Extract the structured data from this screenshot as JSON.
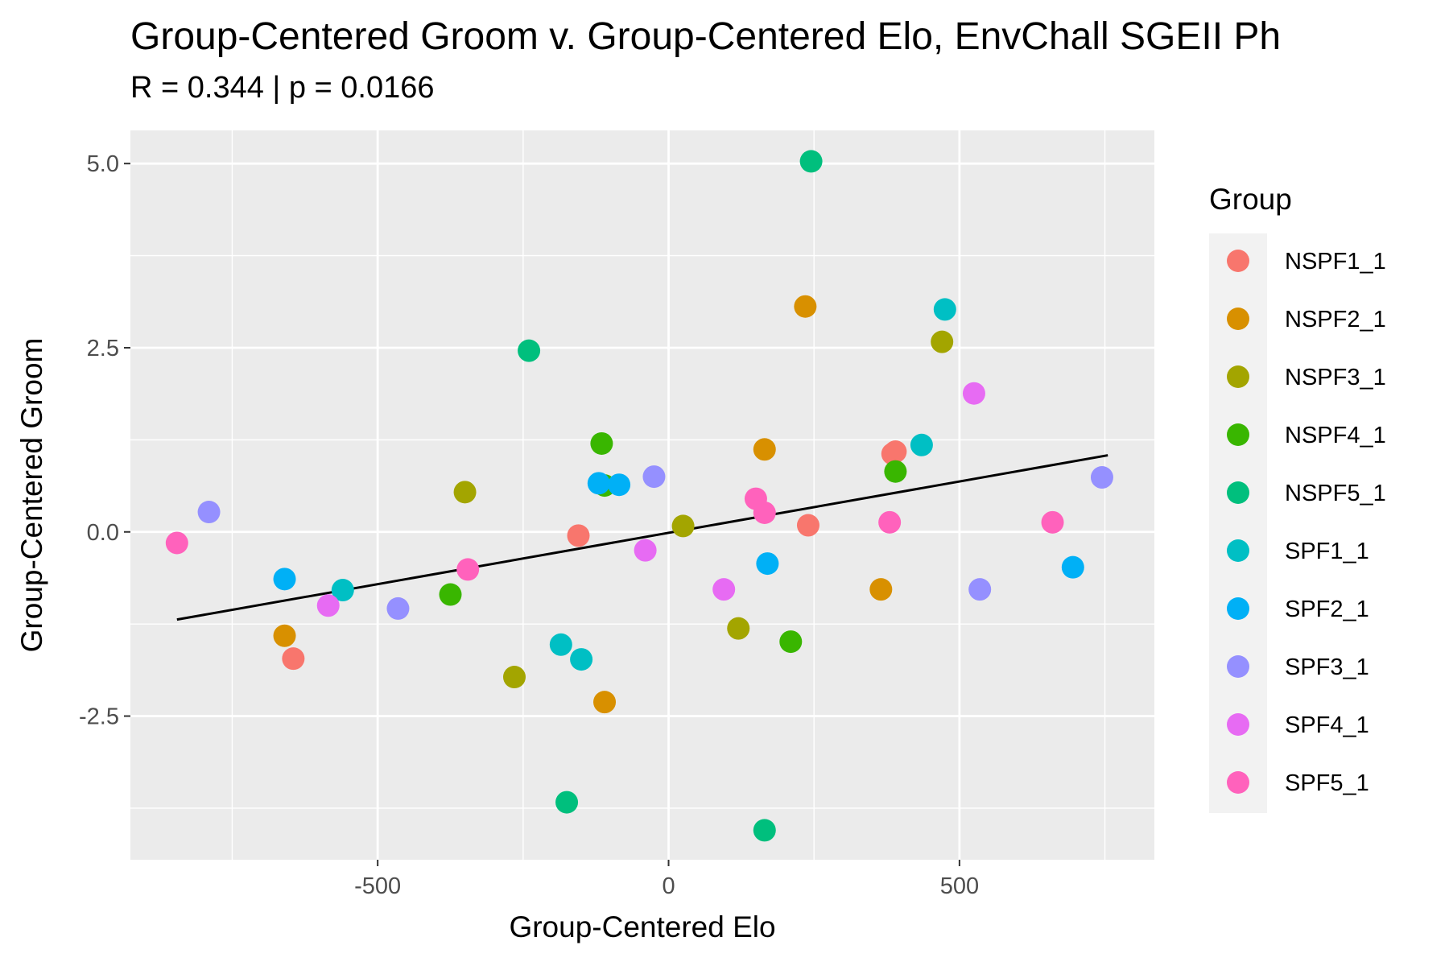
{
  "chart_data": {
    "type": "scatter",
    "title": "Group-Centered Groom v. Group-Centered Elo, EnvChall SGEII Ph",
    "subtitle": "R = 0.344 | p = 0.0166",
    "xlabel": "Group-Centered Elo",
    "ylabel": "Group-Centered Groom",
    "xlim": [
      -925,
      835
    ],
    "ylim": [
      -4.45,
      5.45
    ],
    "x_ticks": [
      -500,
      0,
      500
    ],
    "x_tick_labels": [
      "-500",
      "0",
      "500"
    ],
    "y_ticks": [
      -2.5,
      0.0,
      2.5,
      5.0
    ],
    "y_tick_labels": [
      "-2.5",
      "0.0",
      "2.5",
      "5.0"
    ],
    "grid": true,
    "legend": {
      "title": "Group",
      "placement": "right"
    },
    "trend_line": {
      "x": [
        -845,
        755
      ],
      "y": [
        -1.19,
        1.04
      ]
    },
    "series": [
      {
        "name": "NSPF1_1",
        "color": "#F8766D",
        "x": [
          -645,
          -155,
          240,
          385,
          390
        ],
        "y": [
          -1.72,
          -0.05,
          0.09,
          1.06,
          1.09
        ]
      },
      {
        "name": "NSPF2_1",
        "color": "#D89000",
        "x": [
          -660,
          -110,
          165,
          235,
          365
        ],
        "y": [
          -1.41,
          -2.31,
          1.12,
          3.06,
          -0.78
        ]
      },
      {
        "name": "NSPF3_1",
        "color": "#A3A500",
        "x": [
          -350,
          -265,
          25,
          120,
          470
        ],
        "y": [
          0.54,
          -1.97,
          0.08,
          -1.31,
          2.58
        ]
      },
      {
        "name": "NSPF4_1",
        "color": "#39B600",
        "x": [
          -375,
          -115,
          -110,
          210,
          390
        ],
        "y": [
          -0.85,
          1.2,
          0.63,
          -1.49,
          0.82
        ]
      },
      {
        "name": "NSPF5_1",
        "color": "#00BF7D",
        "x": [
          -240,
          -175,
          165,
          245
        ],
        "y": [
          2.46,
          -3.67,
          -4.05,
          5.03
        ]
      },
      {
        "name": "SPF1_1",
        "color": "#00BFC4",
        "x": [
          -560,
          -185,
          -150,
          435,
          475
        ],
        "y": [
          -0.79,
          -1.53,
          -1.73,
          1.18,
          3.02
        ]
      },
      {
        "name": "SPF2_1",
        "color": "#00B0F6",
        "x": [
          -660,
          -120,
          -85,
          170,
          695
        ],
        "y": [
          -0.64,
          0.66,
          0.64,
          -0.43,
          -0.48
        ]
      },
      {
        "name": "SPF3_1",
        "color": "#9590FF",
        "x": [
          -790,
          -465,
          -25,
          535,
          745
        ],
        "y": [
          0.27,
          -1.04,
          0.75,
          -0.78,
          0.74
        ]
      },
      {
        "name": "SPF4_1",
        "color": "#E76BF3",
        "x": [
          -585,
          -40,
          95,
          525
        ],
        "y": [
          -1.0,
          -0.25,
          -0.78,
          1.88
        ]
      },
      {
        "name": "SPF5_1",
        "color": "#FF62BC",
        "x": [
          -845,
          -345,
          150,
          165,
          380,
          660
        ],
        "y": [
          -0.15,
          -0.51,
          0.45,
          0.26,
          0.13,
          0.13
        ]
      }
    ]
  }
}
